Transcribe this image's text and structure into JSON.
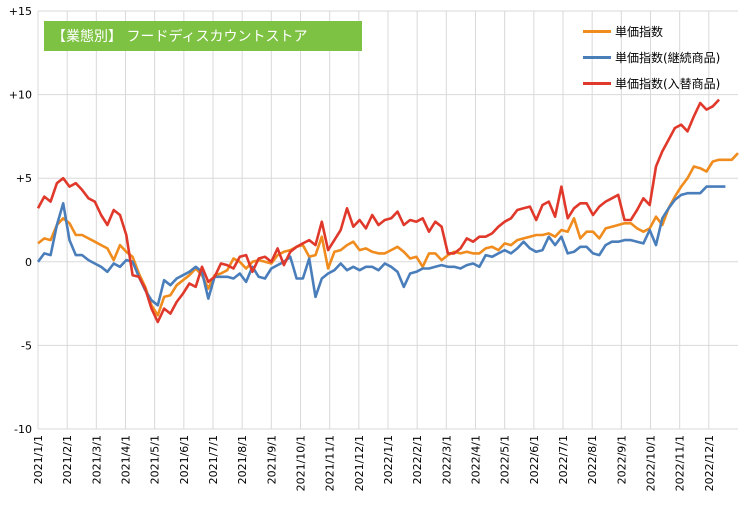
{
  "chart_data": {
    "type": "line",
    "title": "【業態別】 フードディスカウントストア",
    "ylim": [
      -10,
      15
    ],
    "yticks": [
      -10,
      -5,
      0,
      5,
      10,
      15
    ],
    "ytick_labels": [
      "-10",
      "-5",
      "0",
      "+5",
      "+10",
      "+15"
    ],
    "xtick_labels": [
      "2021/1/1",
      "2021/2/1",
      "2021/3/1",
      "2021/4/1",
      "2021/5/1",
      "2021/6/1",
      "2021/7/1",
      "2021/8/1",
      "2021/9/1",
      "2021/10/1",
      "2021/11/1",
      "2021/12/1",
      "2022/1/1",
      "2022/2/1",
      "2022/3/1",
      "2022/4/1",
      "2022/5/1",
      "2022/6/1",
      "2022/7/1",
      "2022/8/1",
      "2022/9/1",
      "2022/10/1",
      "2022/11/1",
      "2022/12/1"
    ],
    "grid": true,
    "legend_position": "top-right",
    "series": [
      {
        "name": "単価指数",
        "color": "#f08c1e",
        "values": [
          1.1,
          1.4,
          1.3,
          2.2,
          2.6,
          2.3,
          1.6,
          1.6,
          1.4,
          1.2,
          1.0,
          0.8,
          0.1,
          1.0,
          0.6,
          0.3,
          -0.7,
          -1.5,
          -2.6,
          -3.2,
          -2.1,
          -2.0,
          -1.4,
          -1.1,
          -0.8,
          -0.4,
          -0.8,
          -1.6,
          -0.8,
          -0.7,
          -0.5,
          0.2,
          0.0,
          -0.4,
          0.0,
          0.1,
          0.0,
          -0.1,
          0.4,
          0.6,
          0.7,
          0.9,
          1.0,
          0.3,
          0.4,
          1.5,
          -0.4,
          0.6,
          0.7,
          1.0,
          1.2,
          0.7,
          0.8,
          0.6,
          0.5,
          0.5,
          0.7,
          0.9,
          0.6,
          0.2,
          0.3,
          -0.3,
          0.5,
          0.5,
          0.1,
          0.4,
          0.6,
          0.5,
          0.6,
          0.5,
          0.5,
          0.8,
          0.9,
          0.7,
          1.1,
          1.0,
          1.3,
          1.4,
          1.5,
          1.6,
          1.6,
          1.7,
          1.5,
          1.9,
          1.8,
          2.6,
          1.4,
          1.8,
          1.8,
          1.4,
          2.0,
          2.1,
          2.2,
          2.3,
          2.3,
          2.0,
          1.8,
          2.0,
          2.7,
          2.2,
          3.2,
          3.9,
          4.5,
          5.0,
          5.7,
          5.6,
          5.4,
          6.0,
          6.1,
          6.1,
          6.1,
          6.5
        ]
      },
      {
        "name": "単価指数(継続商品)",
        "color": "#4a7ebb",
        "values": [
          0.0,
          0.5,
          0.4,
          2.2,
          3.5,
          1.3,
          0.4,
          0.4,
          0.1,
          -0.1,
          -0.3,
          -0.6,
          -0.1,
          -0.3,
          0.1,
          0.0,
          -0.9,
          -1.7,
          -2.3,
          -2.6,
          -1.1,
          -1.4,
          -1.0,
          -0.8,
          -0.6,
          -0.3,
          -0.6,
          -2.2,
          -0.9,
          -0.9,
          -0.9,
          -1.0,
          -0.7,
          -1.2,
          -0.3,
          -0.9,
          -1.0,
          -0.4,
          -0.2,
          0.0,
          0.3,
          -1.0,
          -1.0,
          0.2,
          -2.1,
          -1.0,
          -0.7,
          -0.5,
          -0.1,
          -0.5,
          -0.3,
          -0.5,
          -0.3,
          -0.3,
          -0.5,
          -0.1,
          -0.3,
          -0.6,
          -1.5,
          -0.7,
          -0.6,
          -0.4,
          -0.4,
          -0.3,
          -0.2,
          -0.3,
          -0.3,
          -0.4,
          -0.2,
          -0.1,
          -0.3,
          0.4,
          0.3,
          0.5,
          0.7,
          0.5,
          0.8,
          1.2,
          0.8,
          0.6,
          0.7,
          1.5,
          1.0,
          1.5,
          0.5,
          0.6,
          0.9,
          0.9,
          0.5,
          0.4,
          1.0,
          1.2,
          1.2,
          1.3,
          1.3,
          1.2,
          1.1,
          1.9,
          1.0,
          2.6,
          3.2,
          3.7,
          4.0,
          4.1,
          4.1,
          4.1,
          4.5,
          4.5,
          4.5,
          4.5
        ]
      },
      {
        "name": "単価指数(入替商品)",
        "color": "#e0392b",
        "values": [
          3.2,
          3.9,
          3.6,
          4.7,
          5.0,
          4.5,
          4.7,
          4.3,
          3.8,
          3.6,
          2.8,
          2.2,
          3.1,
          2.8,
          1.6,
          -0.8,
          -0.9,
          -1.6,
          -2.8,
          -3.6,
          -2.8,
          -3.1,
          -2.4,
          -1.9,
          -1.3,
          -1.5,
          -0.3,
          -1.2,
          -0.9,
          -0.1,
          -0.2,
          -0.4,
          0.3,
          0.4,
          -0.6,
          0.2,
          0.3,
          0.0,
          0.8,
          -0.2,
          0.6,
          0.9,
          1.1,
          1.3,
          1.0,
          2.4,
          0.7,
          1.3,
          1.9,
          3.2,
          2.1,
          2.5,
          2.0,
          2.8,
          2.2,
          2.5,
          2.6,
          3.0,
          2.2,
          2.5,
          2.4,
          2.6,
          1.8,
          2.4,
          2.1,
          0.5,
          0.5,
          0.8,
          1.4,
          1.2,
          1.5,
          1.5,
          1.7,
          2.1,
          2.4,
          2.6,
          3.1,
          3.2,
          3.3,
          2.5,
          3.4,
          3.6,
          2.7,
          4.5,
          2.6,
          3.2,
          3.5,
          3.5,
          2.8,
          3.3,
          3.6,
          3.8,
          4.0,
          2.5,
          2.5,
          3.1,
          3.8,
          3.4,
          5.7,
          6.6,
          7.3,
          8.0,
          8.2,
          7.8,
          8.7,
          9.5,
          9.1,
          9.3,
          9.7
        ]
      }
    ]
  }
}
